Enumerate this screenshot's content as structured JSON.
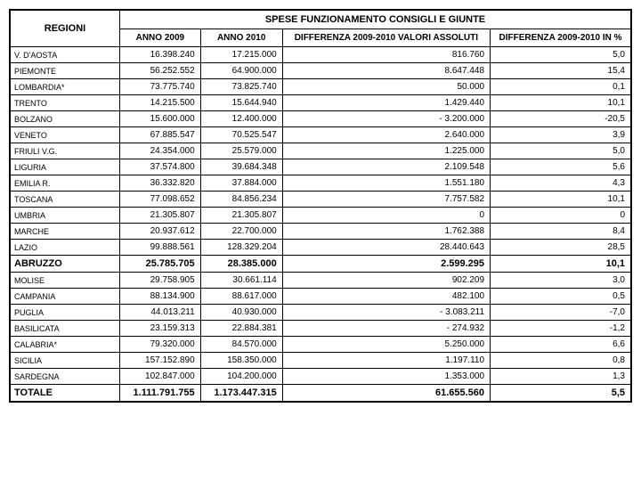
{
  "title": "SPESE FUNZIONAMENTO CONSIGLI E GIUNTE",
  "headers": {
    "regioni": "REGIONI",
    "anno2009": "ANNO 2009",
    "anno2010": "ANNO 2010",
    "diff_abs": "DIFFERENZA 2009-2010 VALORI ASSOLUTI",
    "diff_pct": "DIFFERENZA 2009-2010 IN %"
  },
  "rows": [
    {
      "region": "V. D'AOSTA",
      "a2009": "16.398.240",
      "a2010": "17.215.000",
      "diff": "816.760",
      "pct": "5,0",
      "bold": false
    },
    {
      "region": "PIEMONTE",
      "a2009": "56.252.552",
      "a2010": "64.900.000",
      "diff": "8.647.448",
      "pct": "15,4",
      "bold": false
    },
    {
      "region": "LOMBARDIA*",
      "a2009": "73.775.740",
      "a2010": "73.825.740",
      "diff": "50.000",
      "pct": "0,1",
      "bold": false
    },
    {
      "region": "TRENTO",
      "a2009": "14.215.500",
      "a2010": "15.644.940",
      "diff": "1.429.440",
      "pct": "10,1",
      "bold": false
    },
    {
      "region": "BOLZANO",
      "a2009": "15.600.000",
      "a2010": "12.400.000",
      "diff": "- 3.200.000",
      "pct": "-20,5",
      "bold": false
    },
    {
      "region": "VENETO",
      "a2009": "67.885.547",
      "a2010": "70.525.547",
      "diff": "2.640.000",
      "pct": "3,9",
      "bold": false
    },
    {
      "region": "FRIULI V.G.",
      "a2009": "24.354.000",
      "a2010": "25.579.000",
      "diff": "1.225.000",
      "pct": "5,0",
      "bold": false
    },
    {
      "region": "LIGURIA",
      "a2009": "37.574.800",
      "a2010": "39.684.348",
      "diff": "2.109.548",
      "pct": "5,6",
      "bold": false
    },
    {
      "region": "EMILIA R.",
      "a2009": "36.332.820",
      "a2010": "37.884.000",
      "diff": "1.551.180",
      "pct": "4,3",
      "bold": false
    },
    {
      "region": "TOSCANA",
      "a2009": "77.098.652",
      "a2010": "84.856.234",
      "diff": "7.757.582",
      "pct": "10,1",
      "bold": false
    },
    {
      "region": "UMBRIA",
      "a2009": "21.305.807",
      "a2010": "21.305.807",
      "diff": "0",
      "pct": "0",
      "bold": false
    },
    {
      "region": "MARCHE",
      "a2009": "20.937.612",
      "a2010": "22.700.000",
      "diff": "1.762.388",
      "pct": "8,4",
      "bold": false
    },
    {
      "region": "LAZIO",
      "a2009": "99.888.561",
      "a2010": "128.329.204",
      "diff": "28.440.643",
      "pct": "28,5",
      "bold": false
    },
    {
      "region": "ABRUZZO",
      "a2009": "25.785.705",
      "a2010": "28.385.000",
      "diff": "2.599.295",
      "pct": "10,1",
      "bold": true
    },
    {
      "region": "MOLISE",
      "a2009": "29.758.905",
      "a2010": "30.661.114",
      "diff": "902.209",
      "pct": "3,0",
      "bold": false
    },
    {
      "region": "CAMPANIA",
      "a2009": "88.134.900",
      "a2010": "88.617.000",
      "diff": "482.100",
      "pct": "0,5",
      "bold": false
    },
    {
      "region": "PUGLIA",
      "a2009": "44.013.211",
      "a2010": "40.930.000",
      "diff": "- 3.083.211",
      "pct": "-7,0",
      "bold": false
    },
    {
      "region": "BASILICATA",
      "a2009": "23.159.313",
      "a2010": "22.884.381",
      "diff": "- 274.932",
      "pct": "-1,2",
      "bold": false
    },
    {
      "region": "CALABRIA*",
      "a2009": "79.320.000",
      "a2010": "84.570.000",
      "diff": "5.250.000",
      "pct": "6,6",
      "bold": false
    },
    {
      "region": "SICILIA",
      "a2009": "157.152.890",
      "a2010": "158.350.000",
      "diff": "1.197.110",
      "pct": "0,8",
      "bold": false
    },
    {
      "region": "SARDEGNA",
      "a2009": "102.847.000",
      "a2010": "104.200.000",
      "diff": "1.353.000",
      "pct": "1,3",
      "bold": false
    },
    {
      "region": "TOTALE",
      "a2009": "1.111.791.755",
      "a2010": "1.173.447.315",
      "diff": "61.655.560",
      "pct": "5,5",
      "bold": true
    }
  ]
}
